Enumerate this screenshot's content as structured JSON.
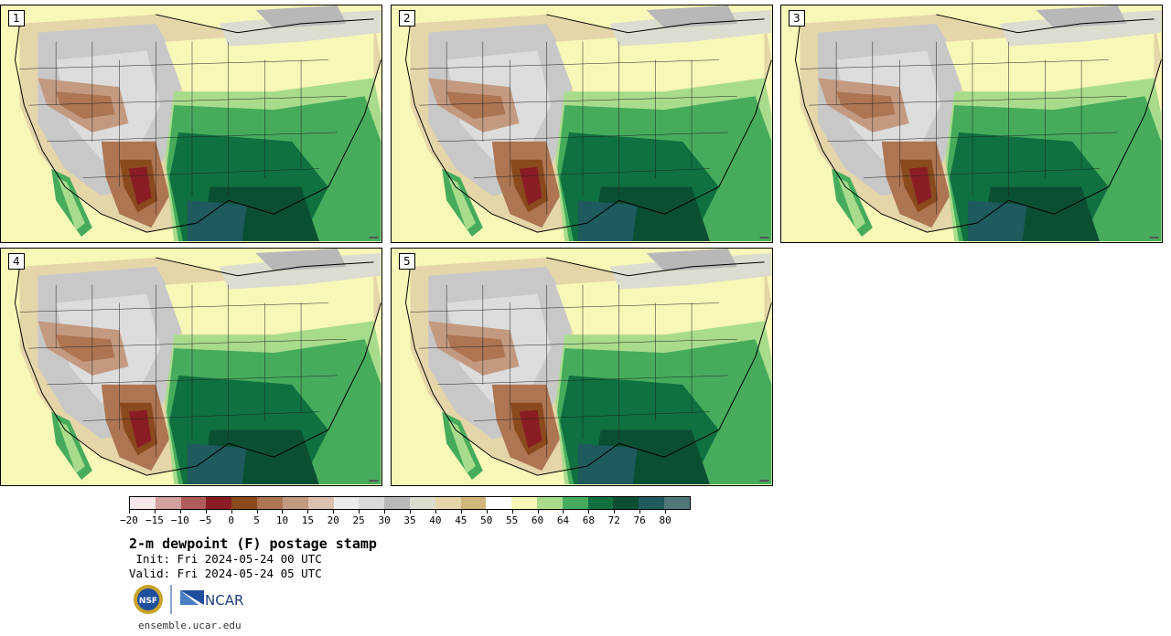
{
  "figure": {
    "title": "2-m dewpoint (F) postage stamp",
    "init": " Init: Fri 2024-05-24 00 UTC",
    "valid": "Valid: Fri 2024-05-24 05 UTC",
    "website": "ensemble.ucar.edu"
  },
  "members": [
    {
      "label": "1"
    },
    {
      "label": "2"
    },
    {
      "label": "3"
    },
    {
      "label": "4"
    },
    {
      "label": "5"
    }
  ],
  "colorbar": {
    "ticks": [
      "−20",
      "−15",
      "−10",
      "−5",
      "0",
      "5",
      "10",
      "15",
      "20",
      "25",
      "30",
      "35",
      "40",
      "45",
      "50",
      "55",
      "60",
      "64",
      "68",
      "72",
      "76",
      "80"
    ],
    "colors": [
      "#f4e8e8",
      "#d4a0a0",
      "#b05c5c",
      "#8a1d24",
      "#8a4a1e",
      "#ad7552",
      "#c39a80",
      "#dcc0b0",
      "#ececec",
      "#dadada",
      "#b8b8b8",
      "#dcdcd0",
      "#e4d6a8",
      "#d1b87a",
      "#ffffff",
      "#f7f7b8",
      "#a8dc8c",
      "#46ac5c",
      "#0f7040",
      "#0b4f33",
      "#1e5a5e",
      "#507878"
    ]
  },
  "logos": {
    "nsf": "NSF",
    "ncar": "NCAR"
  }
}
